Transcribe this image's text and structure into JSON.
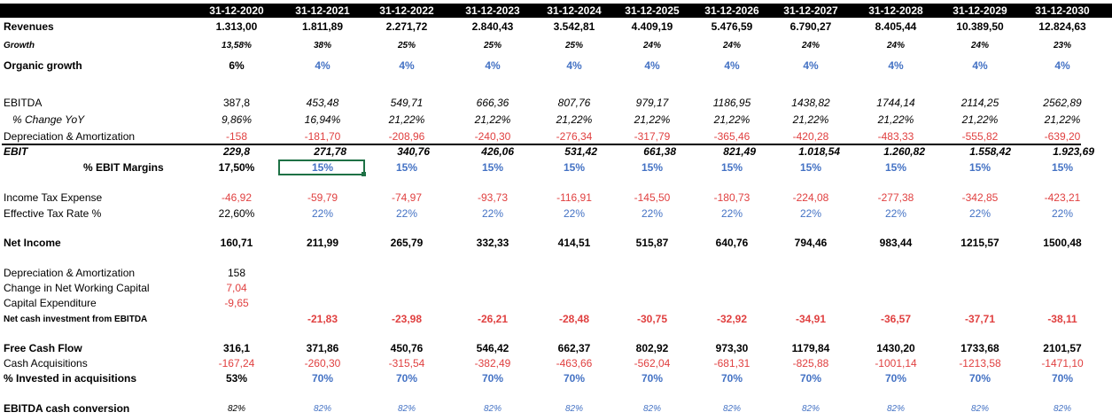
{
  "years": [
    "31-12-2020",
    "31-12-2021",
    "31-12-2022",
    "31-12-2023",
    "31-12-2024",
    "31-12-2025",
    "31-12-2026",
    "31-12-2027",
    "31-12-2028",
    "31-12-2029",
    "31-12-2030"
  ],
  "rows": [
    {
      "label": "Revenues",
      "style": "bold",
      "values": [
        "1.313,00",
        "1.811,89",
        "2.271,72",
        "2.840,43",
        "3.542,81",
        "4.409,19",
        "5.476,59",
        "6.790,27",
        "8.405,44",
        "10.389,50",
        "12.824,63"
      ]
    },
    {
      "label": "Growth",
      "style": "bold-italic-small",
      "values": [
        "13,58%",
        "38%",
        "25%",
        "25%",
        "25%",
        "24%",
        "24%",
        "24%",
        "24%",
        "24%",
        "23%"
      ]
    },
    {
      "label": "Organic growth",
      "style": "bold",
      "values": [
        "6%",
        "4%",
        "4%",
        "4%",
        "4%",
        "4%",
        "4%",
        "4%",
        "4%",
        "4%",
        "4%"
      ],
      "colors": [
        "black",
        "blue",
        "blue",
        "blue",
        "blue",
        "blue",
        "blue",
        "blue",
        "blue",
        "blue",
        "blue"
      ]
    },
    {
      "label": "EBITDA",
      "style": "normal",
      "values": [
        "387,8",
        "453,48",
        "549,71",
        "666,36",
        "807,76",
        "979,17",
        "1186,95",
        "1438,82",
        "1744,14",
        "2114,25",
        "2562,89"
      ],
      "italic_from": 1
    },
    {
      "label": "% Change YoY",
      "style": "italic",
      "values": [
        "9,86%",
        "16,94%",
        "21,22%",
        "21,22%",
        "21,22%",
        "21,22%",
        "21,22%",
        "21,22%",
        "21,22%",
        "21,22%",
        "21,22%"
      ]
    },
    {
      "label": "Depreciation & Amortization",
      "style": "normal",
      "values": [
        "-158",
        "-181,70",
        "-208,96",
        "-240,30",
        "-276,34",
        "-317,79",
        "-365,46",
        "-420,28",
        "-483,33",
        "-555,82",
        "-639,20"
      ],
      "colors": [
        "red",
        "red",
        "red",
        "red",
        "red",
        "red",
        "red",
        "red",
        "red",
        "red",
        "red"
      ]
    },
    {
      "label": "EBIT",
      "style": "bold-italic",
      "values": [
        "229,8",
        "271,78",
        "340,76",
        "426,06",
        "531,42",
        "661,38",
        "821,49",
        "1.018,54",
        "1.260,82",
        "1.558,42",
        "1.923,69"
      ]
    },
    {
      "label": "% EBIT Margins",
      "style": "bold",
      "values": [
        "17,50%",
        "15%",
        "15%",
        "15%",
        "15%",
        "15%",
        "15%",
        "15%",
        "15%",
        "15%",
        "15%"
      ],
      "colors": [
        "black",
        "blue",
        "blue",
        "blue",
        "blue",
        "blue",
        "blue",
        "blue",
        "blue",
        "blue",
        "blue"
      ]
    },
    {
      "label": "Income Tax Expense",
      "style": "normal",
      "values": [
        "-46,92",
        "-59,79",
        "-74,97",
        "-93,73",
        "-116,91",
        "-145,50",
        "-180,73",
        "-224,08",
        "-277,38",
        "-342,85",
        "-423,21"
      ],
      "colors": [
        "red",
        "red",
        "red",
        "red",
        "red",
        "red",
        "red",
        "red",
        "red",
        "red",
        "red"
      ]
    },
    {
      "label": "Effective Tax Rate %",
      "style": "normal",
      "values": [
        "22,60%",
        "22%",
        "22%",
        "22%",
        "22%",
        "22%",
        "22%",
        "22%",
        "22%",
        "22%",
        "22%"
      ],
      "colors": [
        "black",
        "blue",
        "blue",
        "blue",
        "blue",
        "blue",
        "blue",
        "blue",
        "blue",
        "blue",
        "blue"
      ]
    },
    {
      "label": "Net Income",
      "style": "bold",
      "values": [
        "160,71",
        "211,99",
        "265,79",
        "332,33",
        "414,51",
        "515,87",
        "640,76",
        "794,46",
        "983,44",
        "1215,57",
        "1500,48"
      ]
    },
    {
      "label": "Depreciation & Amortization",
      "style": "normal",
      "values": [
        "158",
        "",
        "",
        "",
        "",
        "",
        "",
        "",
        "",
        "",
        ""
      ]
    },
    {
      "label": "Change in Net Working Capital",
      "style": "normal",
      "values": [
        "7,04",
        "",
        "",
        "",
        "",
        "",
        "",
        "",
        "",
        "",
        ""
      ],
      "colors": [
        "red"
      ]
    },
    {
      "label": "Capital Expenditure",
      "style": "normal",
      "values": [
        "-9,65",
        "",
        "",
        "",
        "",
        "",
        "",
        "",
        "",
        "",
        ""
      ],
      "colors": [
        "red"
      ]
    },
    {
      "label": "Net cash investment from EBITDA",
      "style": "bold-small",
      "values": [
        "",
        "-21,83",
        "-23,98",
        "-26,21",
        "-28,48",
        "-30,75",
        "-32,92",
        "-34,91",
        "-36,57",
        "-37,71",
        "-38,11"
      ],
      "colors": [
        "red",
        "red",
        "red",
        "red",
        "red",
        "red",
        "red",
        "red",
        "red",
        "red",
        "red"
      ]
    },
    {
      "label": "Free Cash Flow",
      "style": "bold",
      "values": [
        "316,1",
        "371,86",
        "450,76",
        "546,42",
        "662,37",
        "802,92",
        "973,30",
        "1179,84",
        "1430,20",
        "1733,68",
        "2101,57"
      ]
    },
    {
      "label": "Cash Acquisitions",
      "style": "normal",
      "values": [
        "-167,24",
        "-260,30",
        "-315,54",
        "-382,49",
        "-463,66",
        "-562,04",
        "-681,31",
        "-825,88",
        "-1001,14",
        "-1213,58",
        "-1471,10"
      ],
      "colors": [
        "red",
        "red",
        "red",
        "red",
        "red",
        "red",
        "red",
        "red",
        "red",
        "red",
        "red"
      ]
    },
    {
      "label": "% Invested in acquisitions",
      "style": "bold",
      "values": [
        "53%",
        "70%",
        "70%",
        "70%",
        "70%",
        "70%",
        "70%",
        "70%",
        "70%",
        "70%",
        "70%"
      ],
      "colors": [
        "black",
        "blue",
        "blue",
        "blue",
        "blue",
        "blue",
        "blue",
        "blue",
        "blue",
        "blue",
        "blue"
      ]
    },
    {
      "label": "EBITDA cash conversion",
      "style": "bold",
      "values": [
        "82%",
        "82%",
        "82%",
        "82%",
        "82%",
        "82%",
        "82%",
        "82%",
        "82%",
        "82%",
        "82%"
      ],
      "colors": [
        "black",
        "blue",
        "blue",
        "blue",
        "blue",
        "blue",
        "blue",
        "blue",
        "blue",
        "blue",
        "blue"
      ],
      "values_italic_small": true
    }
  ],
  "colors": {
    "header_bg": "#000000",
    "header_text": "#ffffff",
    "input_blue": "#4472c4",
    "negative_red": "#e04040",
    "selection_green": "#1e7145"
  }
}
